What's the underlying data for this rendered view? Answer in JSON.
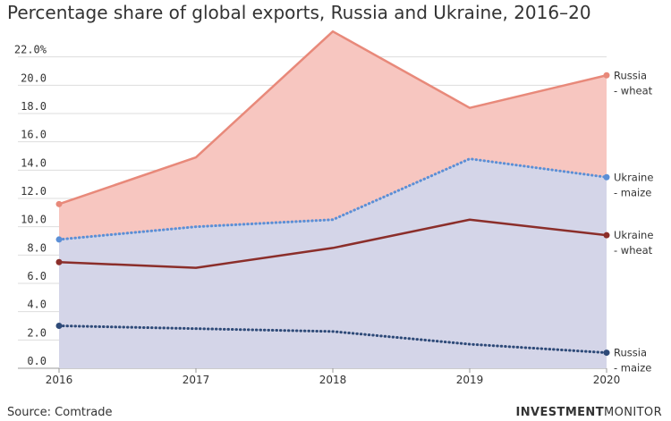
{
  "header": {
    "title": "Percentage share of global exports, Russia and Ukraine, 2016–20"
  },
  "footer": {
    "source": "Source: Comtrade",
    "brand_bold": "INVESTMENT",
    "brand_light": "MONITOR"
  },
  "chart_data": {
    "type": "area",
    "title": "Percentage share of global exports, Russia and Ukraine, 2016–20",
    "x": [
      "2016",
      "2017",
      "2018",
      "2019",
      "2020"
    ],
    "ylim": [
      0,
      22
    ],
    "yticks": [
      "0.0",
      "2.0",
      "4.0",
      "6.0",
      "8.0",
      "10.0",
      "12.0",
      "14.0",
      "16.0",
      "18.0",
      "20.0",
      "22.0%"
    ],
    "grid": true,
    "series": [
      {
        "name": "Russia - wheat",
        "label_lines": [
          "Russia",
          "- wheat"
        ],
        "values": [
          11.6,
          14.9,
          23.8,
          18.4,
          20.7
        ],
        "color": "#e8897a",
        "fill": "#f7c6c0",
        "dashed": false
      },
      {
        "name": "Ukraine - maize",
        "label_lines": [
          "Ukraine",
          "- maize"
        ],
        "values": [
          9.1,
          10.0,
          10.5,
          14.8,
          13.5
        ],
        "color": "#5b8fd6",
        "fill": "#c8daf5",
        "dashed": true
      },
      {
        "name": "Ukraine - wheat",
        "label_lines": [
          "Ukraine",
          "- wheat"
        ],
        "values": [
          7.5,
          7.1,
          8.5,
          10.5,
          9.4
        ],
        "color": "#8b2e2a",
        "fill": null,
        "dashed": false
      },
      {
        "name": "Russia - maize",
        "label_lines": [
          "Russia",
          "- maize"
        ],
        "values": [
          3.0,
          2.8,
          2.6,
          1.7,
          1.1
        ],
        "color": "#2e4a78",
        "fill": null,
        "dashed": true
      }
    ]
  }
}
